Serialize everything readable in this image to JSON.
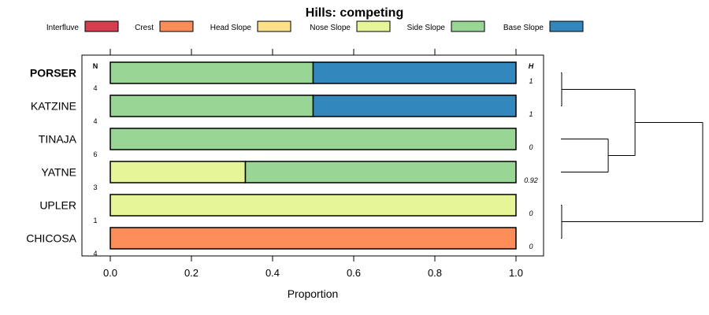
{
  "chart_data": {
    "type": "bar",
    "subtype": "stacked-horizontal-proportion",
    "title": "Hills: competing",
    "xlabel": "Proportion",
    "xlim": [
      0,
      1
    ],
    "x_ticks": [
      "0.0",
      "0.2",
      "0.4",
      "0.6",
      "0.8",
      "1.0"
    ],
    "n_header": "N",
    "h_header": "H",
    "legend": [
      {
        "name": "Interfluve",
        "color": "#D53E4F"
      },
      {
        "name": "Crest",
        "color": "#FC8D59"
      },
      {
        "name": "Head Slope",
        "color": "#FEE08B"
      },
      {
        "name": "Nose Slope",
        "color": "#E6F598"
      },
      {
        "name": "Side Slope",
        "color": "#99D594"
      },
      {
        "name": "Base Slope",
        "color": "#3288BD"
      }
    ],
    "categories": [
      "PORSER",
      "KATZINE",
      "TINAJA",
      "YATNE",
      "UPLER",
      "CHICOSA"
    ],
    "bold_category": "PORSER",
    "n": [
      "4",
      "4",
      "6",
      "3",
      "1",
      "4"
    ],
    "h": [
      "1",
      "1",
      "0",
      "0.92",
      "0",
      "0"
    ],
    "series": [
      {
        "name": "Interfluve",
        "values": [
          0,
          0,
          0,
          0,
          0,
          0
        ]
      },
      {
        "name": "Crest",
        "values": [
          0,
          0,
          0,
          0,
          0,
          1
        ]
      },
      {
        "name": "Head Slope",
        "values": [
          0,
          0,
          0,
          0,
          0,
          0
        ]
      },
      {
        "name": "Nose Slope",
        "values": [
          0,
          0,
          0,
          0.333,
          1,
          0
        ]
      },
      {
        "name": "Side Slope",
        "values": [
          0.5,
          0.5,
          1,
          0.667,
          0,
          0
        ]
      },
      {
        "name": "Base Slope",
        "values": [
          0.5,
          0.5,
          0,
          0,
          0,
          0
        ]
      }
    ],
    "dendrogram": {
      "merges": [
        [
          0,
          1,
          0.0
        ],
        [
          2,
          3,
          0.33
        ],
        [
          6,
          7,
          0.52
        ],
        [
          4,
          5,
          0.0
        ],
        [
          8,
          9,
          1.0
        ]
      ]
    }
  }
}
